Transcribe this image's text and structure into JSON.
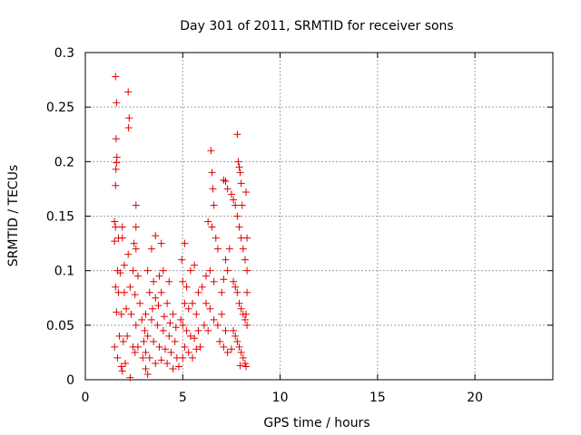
{
  "chart_data": {
    "type": "scatter",
    "title": "Day 301 of 2011, SRMTID for receiver sons",
    "xlabel": "GPS time / hours",
    "ylabel": "SRMTID / TECUs",
    "xlim": [
      0,
      24
    ],
    "ylim": [
      0,
      0.3
    ],
    "xticks": [
      0,
      5,
      10,
      15,
      20
    ],
    "xtick_labels": [
      "0",
      "5",
      "10",
      "15",
      "20"
    ],
    "yticks": [
      0,
      0.05,
      0.1,
      0.15,
      0.2,
      0.25,
      0.3
    ],
    "ytick_labels": [
      "0",
      "0.05",
      "0.1",
      "0.15",
      "0.2",
      "0.25",
      "0.3"
    ],
    "grid": true,
    "marker": "+",
    "color": "#e00000",
    "series": [
      {
        "name": "SRMTID",
        "points": [
          [
            1.55,
            0.278
          ],
          [
            1.6,
            0.254
          ],
          [
            1.58,
            0.221
          ],
          [
            1.62,
            0.204
          ],
          [
            1.6,
            0.199
          ],
          [
            1.57,
            0.193
          ],
          [
            1.55,
            0.178
          ],
          [
            2.2,
            0.264
          ],
          [
            2.25,
            0.24
          ],
          [
            2.22,
            0.231
          ],
          [
            2.6,
            0.16
          ],
          [
            1.5,
            0.145
          ],
          [
            1.55,
            0.14
          ],
          [
            1.9,
            0.14
          ],
          [
            2.6,
            0.14
          ],
          [
            1.5,
            0.127
          ],
          [
            1.7,
            0.13
          ],
          [
            1.9,
            0.13
          ],
          [
            2.6,
            0.12
          ],
          [
            2.5,
            0.125
          ],
          [
            2.2,
            0.115
          ],
          [
            2.0,
            0.105
          ],
          [
            1.65,
            0.1
          ],
          [
            1.8,
            0.098
          ],
          [
            2.45,
            0.1
          ],
          [
            2.7,
            0.095
          ],
          [
            1.55,
            0.085
          ],
          [
            1.7,
            0.08
          ],
          [
            2.0,
            0.08
          ],
          [
            2.3,
            0.085
          ],
          [
            2.55,
            0.078
          ],
          [
            2.8,
            0.07
          ],
          [
            1.6,
            0.062
          ],
          [
            1.85,
            0.06
          ],
          [
            2.1,
            0.065
          ],
          [
            2.35,
            0.06
          ],
          [
            2.6,
            0.05
          ],
          [
            2.9,
            0.055
          ],
          [
            1.5,
            0.03
          ],
          [
            1.75,
            0.04
          ],
          [
            1.95,
            0.035
          ],
          [
            2.15,
            0.04
          ],
          [
            2.45,
            0.03
          ],
          [
            2.7,
            0.03
          ],
          [
            1.65,
            0.02
          ],
          [
            1.85,
            0.012
          ],
          [
            2.05,
            0.015
          ],
          [
            2.3,
            0.002
          ],
          [
            1.9,
            0.008
          ],
          [
            2.55,
            0.025
          ],
          [
            2.95,
            0.02
          ],
          [
            3.1,
            0.025
          ],
          [
            3.2,
            0.005
          ],
          [
            3.1,
            0.01
          ],
          [
            3.6,
            0.132
          ],
          [
            3.9,
            0.125
          ],
          [
            3.4,
            0.12
          ],
          [
            3.2,
            0.1
          ],
          [
            3.5,
            0.09
          ],
          [
            3.8,
            0.095
          ],
          [
            4.0,
            0.1
          ],
          [
            4.3,
            0.09
          ],
          [
            3.3,
            0.08
          ],
          [
            3.6,
            0.075
          ],
          [
            3.9,
            0.08
          ],
          [
            4.2,
            0.07
          ],
          [
            4.5,
            0.06
          ],
          [
            3.1,
            0.06
          ],
          [
            3.4,
            0.055
          ],
          [
            3.7,
            0.05
          ],
          [
            4.0,
            0.045
          ],
          [
            4.3,
            0.04
          ],
          [
            4.6,
            0.035
          ],
          [
            3.2,
            0.04
          ],
          [
            3.5,
            0.035
          ],
          [
            3.8,
            0.03
          ],
          [
            4.1,
            0.028
          ],
          [
            4.4,
            0.025
          ],
          [
            4.7,
            0.02
          ],
          [
            3.3,
            0.02
          ],
          [
            3.6,
            0.015
          ],
          [
            3.9,
            0.018
          ],
          [
            4.2,
            0.015
          ],
          [
            4.5,
            0.01
          ],
          [
            4.8,
            0.012
          ],
          [
            3.0,
            0.035
          ],
          [
            3.05,
            0.045
          ],
          [
            3.45,
            0.065
          ],
          [
            3.75,
            0.068
          ],
          [
            4.05,
            0.058
          ],
          [
            4.35,
            0.052
          ],
          [
            4.65,
            0.048
          ],
          [
            4.9,
            0.055
          ],
          [
            4.95,
            0.11
          ],
          [
            5.1,
            0.125
          ],
          [
            5.0,
            0.09
          ],
          [
            5.2,
            0.085
          ],
          [
            5.4,
            0.1
          ],
          [
            5.6,
            0.105
          ],
          [
            5.8,
            0.08
          ],
          [
            5.1,
            0.07
          ],
          [
            5.3,
            0.065
          ],
          [
            5.5,
            0.07
          ],
          [
            5.7,
            0.06
          ],
          [
            5.0,
            0.05
          ],
          [
            5.2,
            0.045
          ],
          [
            5.4,
            0.04
          ],
          [
            5.6,
            0.038
          ],
          [
            5.8,
            0.045
          ],
          [
            5.1,
            0.03
          ],
          [
            5.3,
            0.025
          ],
          [
            5.5,
            0.02
          ],
          [
            5.7,
            0.028
          ],
          [
            5.9,
            0.03
          ],
          [
            5.0,
            0.02
          ],
          [
            6.0,
            0.085
          ],
          [
            6.2,
            0.095
          ],
          [
            6.4,
            0.1
          ],
          [
            6.6,
            0.09
          ],
          [
            6.3,
            0.145
          ],
          [
            6.5,
            0.14
          ],
          [
            6.7,
            0.13
          ],
          [
            6.45,
            0.21
          ],
          [
            6.5,
            0.19
          ],
          [
            6.55,
            0.175
          ],
          [
            6.6,
            0.16
          ],
          [
            6.8,
            0.12
          ],
          [
            6.2,
            0.07
          ],
          [
            6.4,
            0.065
          ],
          [
            6.6,
            0.055
          ],
          [
            6.8,
            0.05
          ],
          [
            7.0,
            0.06
          ],
          [
            6.1,
            0.05
          ],
          [
            6.3,
            0.045
          ],
          [
            6.9,
            0.035
          ],
          [
            7.1,
            0.03
          ],
          [
            7.3,
            0.025
          ],
          [
            7.5,
            0.028
          ],
          [
            7.2,
            0.045
          ],
          [
            7.0,
            0.08
          ],
          [
            7.1,
            0.092
          ],
          [
            7.3,
            0.1
          ],
          [
            7.2,
            0.11
          ],
          [
            7.4,
            0.12
          ],
          [
            7.1,
            0.183
          ],
          [
            7.2,
            0.182
          ],
          [
            7.3,
            0.175
          ],
          [
            7.5,
            0.17
          ],
          [
            7.6,
            0.165
          ],
          [
            7.7,
            0.16
          ],
          [
            7.8,
            0.15
          ],
          [
            7.9,
            0.14
          ],
          [
            8.0,
            0.13
          ],
          [
            8.1,
            0.12
          ],
          [
            8.2,
            0.11
          ],
          [
            7.8,
            0.225
          ],
          [
            7.85,
            0.2
          ],
          [
            7.9,
            0.195
          ],
          [
            8.0,
            0.18
          ],
          [
            7.95,
            0.19
          ],
          [
            8.05,
            0.16
          ],
          [
            8.25,
            0.172
          ],
          [
            7.6,
            0.09
          ],
          [
            7.7,
            0.085
          ],
          [
            7.8,
            0.08
          ],
          [
            7.9,
            0.07
          ],
          [
            8.0,
            0.065
          ],
          [
            8.1,
            0.06
          ],
          [
            8.2,
            0.055
          ],
          [
            8.3,
            0.05
          ],
          [
            7.6,
            0.045
          ],
          [
            7.7,
            0.04
          ],
          [
            7.8,
            0.035
          ],
          [
            7.9,
            0.03
          ],
          [
            8.0,
            0.025
          ],
          [
            8.1,
            0.02
          ],
          [
            8.2,
            0.015
          ],
          [
            8.25,
            0.012
          ],
          [
            7.95,
            0.013
          ],
          [
            8.3,
            0.13
          ],
          [
            8.3,
            0.1
          ],
          [
            8.3,
            0.08
          ],
          [
            8.25,
            0.06
          ]
        ]
      }
    ]
  }
}
